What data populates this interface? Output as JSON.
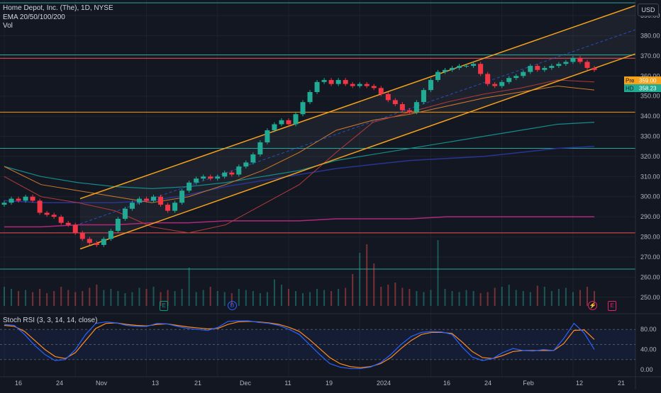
{
  "header": {
    "symbol_line": "Home Depot, Inc. (The), 1D, NYSE",
    "ema_line": "EMA 20/50/100/200",
    "vol_line": "Vol",
    "currency": "USD"
  },
  "price_axis": {
    "ticks": [
      "390.00",
      "380.00",
      "370.00",
      "360.00",
      "350.00",
      "340.00",
      "330.00",
      "320.00",
      "310.00",
      "300.00",
      "290.00",
      "280.00",
      "270.00",
      "260.00",
      "250.00"
    ],
    "badges": [
      {
        "tag": "Pre",
        "value": "359.00",
        "color": "#f7a21b"
      },
      {
        "tag": "HD",
        "value": "358.23",
        "color": "#22ab94"
      }
    ]
  },
  "stoch_panel": {
    "title": "Stoch RSI (3, 3, 14, 14, close)",
    "ticks": [
      "80.00",
      "40.00",
      "0.00"
    ]
  },
  "time_axis": {
    "labels": [
      "16",
      "24",
      "Nov",
      "13",
      "21",
      "Dec",
      "11",
      "19",
      "2024",
      "16",
      "24",
      "Feb",
      "12",
      "21"
    ]
  },
  "event_markers": [
    "E",
    "D",
    "E"
  ],
  "chart_data": {
    "type": "candlestick",
    "symbol": "HD",
    "interval": "1D",
    "ylim": [
      245,
      396
    ],
    "candles_close": [
      297,
      299,
      298,
      300,
      298,
      292,
      291,
      290,
      287,
      286,
      282,
      279,
      277,
      276,
      279,
      283,
      289,
      294,
      297,
      299,
      298,
      300,
      296,
      293,
      297,
      303,
      307,
      309,
      310,
      309,
      310,
      312,
      311,
      315,
      317,
      321,
      327,
      333,
      336,
      338,
      336,
      341,
      347,
      352,
      357,
      358,
      356,
      358,
      356,
      355,
      356,
      355,
      354,
      351,
      348,
      346,
      343,
      342,
      347,
      353,
      358,
      362,
      363,
      364,
      365,
      365,
      366,
      361,
      356,
      355,
      357,
      359,
      360,
      362,
      365,
      363,
      364,
      365,
      366,
      367,
      369,
      367,
      364,
      363
    ],
    "last_open": 364,
    "horizontal_levels": [
      {
        "price": 370.5,
        "color": "#26a69a"
      },
      {
        "price": 368.8,
        "color": "#ef5350"
      },
      {
        "price": 342,
        "color": "#ff9800"
      },
      {
        "price": 324,
        "color": "#26a69a"
      },
      {
        "price": 282,
        "color": "#ef5350"
      },
      {
        "price": 264,
        "color": "#26a69a"
      }
    ],
    "channel": {
      "upper": [
        [
          0,
          299
        ],
        [
          130,
          395
        ]
      ],
      "lower": [
        [
          0,
          274
        ],
        [
          130,
          371
        ]
      ]
    },
    "ema20": [
      310,
      300,
      297,
      293,
      285,
      282,
      286,
      296,
      306,
      322,
      337,
      342,
      347,
      351,
      354,
      358,
      357
    ],
    "ema50": [
      315,
      306,
      303,
      300,
      297,
      300,
      306,
      313,
      322,
      333,
      338,
      341,
      345,
      349,
      352,
      355,
      353
    ],
    "ema100": [
      315,
      310,
      307,
      305,
      304,
      305,
      307,
      310,
      313,
      318,
      321,
      324,
      327,
      330,
      333,
      336,
      337
    ],
    "ema200": [
      298,
      297,
      297,
      297,
      298,
      301,
      305,
      308,
      311,
      314,
      316,
      318,
      319,
      320,
      322,
      324,
      325
    ],
    "ema_long": [
      285,
      285,
      286,
      286,
      287,
      287,
      288,
      288,
      288,
      289,
      289,
      289,
      290,
      290,
      290,
      290,
      290
    ],
    "stoch_k": [
      90,
      88,
      70,
      48,
      30,
      18,
      20,
      40,
      70,
      92,
      95,
      93,
      88,
      86,
      86,
      92,
      91,
      86,
      82,
      80,
      78,
      84,
      96,
      97,
      97,
      94,
      92,
      88,
      80,
      70,
      50,
      30,
      12,
      5,
      2,
      2,
      5,
      14,
      30,
      50,
      66,
      74,
      76,
      75,
      70,
      45,
      25,
      18,
      22,
      34,
      42,
      38,
      37,
      40,
      38,
      62,
      92,
      73,
      40
    ],
    "stoch_d": [
      88,
      86,
      76,
      58,
      40,
      26,
      22,
      34,
      58,
      82,
      92,
      93,
      90,
      88,
      87,
      90,
      91,
      88,
      85,
      83,
      81,
      82,
      90,
      95,
      96,
      95,
      93,
      90,
      84,
      76,
      60,
      42,
      24,
      12,
      6,
      4,
      6,
      12,
      24,
      42,
      58,
      70,
      74,
      74,
      72,
      55,
      36,
      24,
      22,
      28,
      36,
      38,
      38,
      38,
      38,
      52,
      78,
      79,
      60
    ],
    "volume": [
      18,
      16,
      14,
      15,
      13,
      16,
      12,
      14,
      18,
      15,
      13,
      14,
      17,
      20,
      15,
      16,
      14,
      12,
      13,
      17,
      16,
      18,
      13,
      15,
      14,
      16,
      36,
      13,
      15,
      18,
      14,
      13,
      12,
      16,
      15,
      14,
      12,
      13,
      25,
      20,
      16,
      14,
      12,
      13,
      16,
      15,
      14,
      16,
      17,
      30,
      50,
      58,
      40,
      18,
      20,
      22,
      17,
      16,
      14,
      13,
      15,
      62,
      16,
      14,
      13,
      15,
      14,
      12,
      13,
      17,
      18,
      20,
      15,
      14,
      13,
      19,
      18,
      14,
      16,
      17,
      13,
      15,
      18,
      14
    ],
    "time_labels": [
      "16",
      "24",
      "Nov",
      "13",
      "21",
      "Dec",
      "11",
      "19",
      "2024",
      "16",
      "24",
      "Feb",
      "12",
      "21"
    ]
  }
}
